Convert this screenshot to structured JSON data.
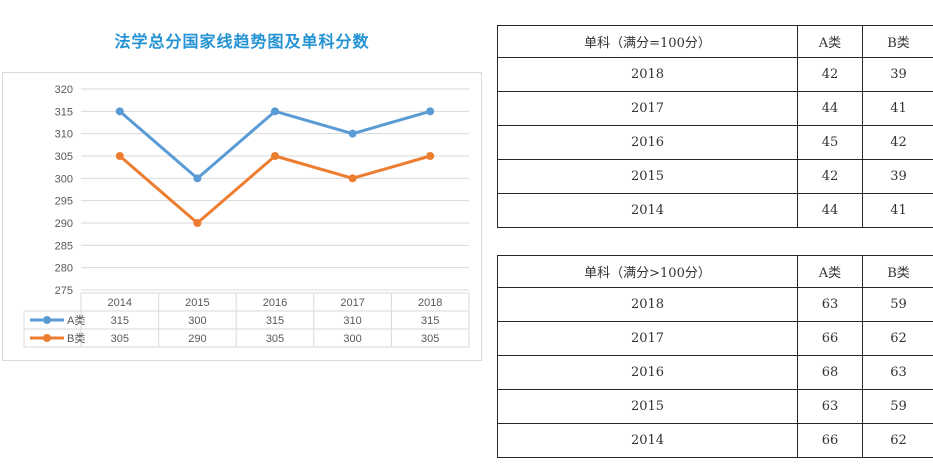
{
  "chart_data": {
    "type": "line",
    "title": "法学总分国家线趋势图及单科分数",
    "categories": [
      "2014",
      "2015",
      "2016",
      "2017",
      "2018"
    ],
    "series": [
      {
        "name": "A类",
        "color": "#5b9bd5",
        "values": [
          315,
          300,
          315,
          310,
          315
        ]
      },
      {
        "name": "B类",
        "color": "#ed7d31",
        "values": [
          305,
          290,
          305,
          300,
          305
        ]
      }
    ],
    "ylim": [
      275,
      320
    ],
    "ytick_step": 5,
    "grid": true,
    "legend_position": "bottom-data-table",
    "axis_text_color": "#595959",
    "grid_color": "#d9d9d9"
  },
  "tables": [
    {
      "header": [
        "单科（满分=100分）",
        "A类",
        "B类"
      ],
      "rows": [
        [
          "2018",
          "42",
          "39"
        ],
        [
          "2017",
          "44",
          "41"
        ],
        [
          "2016",
          "45",
          "42"
        ],
        [
          "2015",
          "42",
          "39"
        ],
        [
          "2014",
          "44",
          "41"
        ]
      ]
    },
    {
      "header": [
        "单科（满分>100分）",
        "A类",
        "B类"
      ],
      "rows": [
        [
          "2018",
          "63",
          "59"
        ],
        [
          "2017",
          "66",
          "62"
        ],
        [
          "2016",
          "68",
          "63"
        ],
        [
          "2015",
          "63",
          "59"
        ],
        [
          "2014",
          "66",
          "62"
        ]
      ]
    }
  ]
}
